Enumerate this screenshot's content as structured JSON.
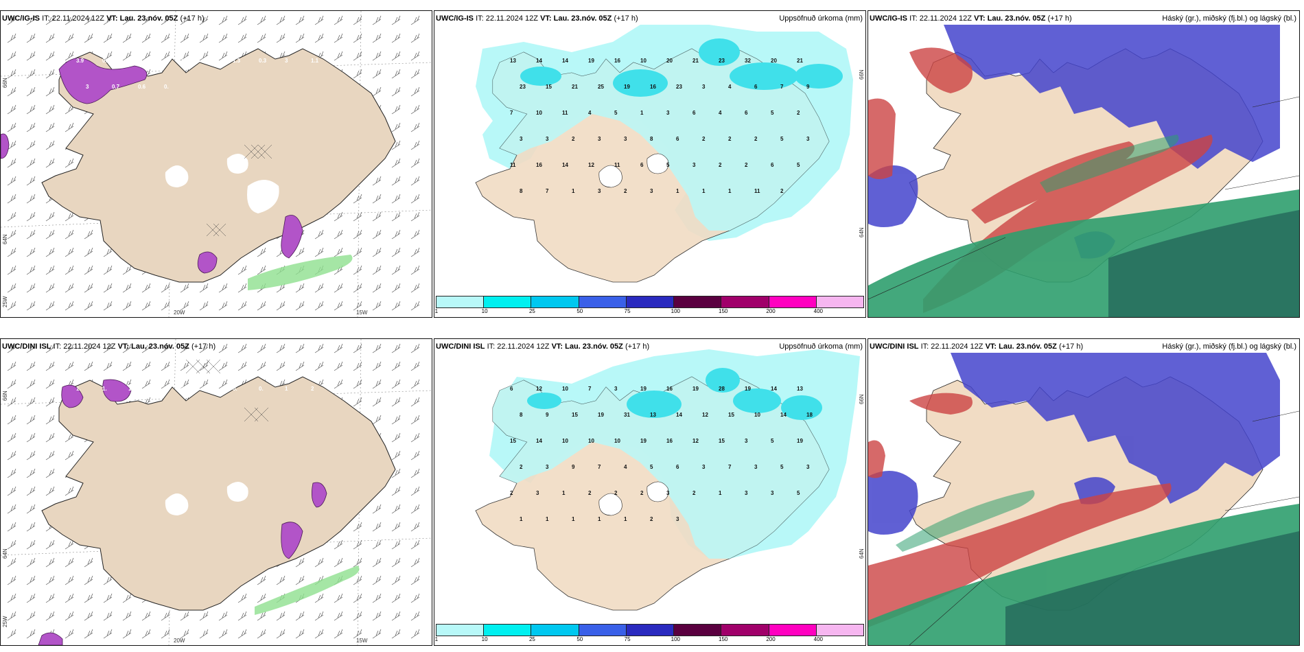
{
  "panels": [
    {
      "id": "top-left",
      "model": "UWC/IG-IS",
      "it_label": "IT:",
      "it_value": "22.11.2024 12Z",
      "vt_label": "VT:",
      "vt_value": "Lau. 23.nóv. 05Z",
      "lead": "(+17 h)",
      "right_title": "",
      "grid_labels": {
        "lat_top": "66N",
        "lat_bottom": "64N",
        "lat_corner": "25W",
        "lon_left": "20W",
        "lon_right": "15W"
      },
      "values": [
        "3.9",
        "0.4",
        "3.",
        "3.8",
        "1.",
        "0.",
        "1.3",
        "0.3",
        "3",
        "1.1",
        "1.",
        "2",
        "3",
        "0.7",
        "0.6",
        "0."
      ]
    },
    {
      "id": "top-middle",
      "model": "UWC/IG-IS",
      "it_label": "IT:",
      "it_value": "22.11.2024 12Z",
      "vt_label": "VT:",
      "vt_value": "Lau. 23.nóv. 05Z",
      "lead": "(+17 h)",
      "right_title": "Uppsöfnuð úrkoma (mm)",
      "grid_labels": {
        "lat_top": "66N",
        "lat_bottom": "64N"
      },
      "values": [
        "13",
        "14",
        "14",
        "19",
        "16",
        "10",
        "20",
        "21",
        "23",
        "32",
        "20",
        "21",
        "23",
        "15",
        "21",
        "25",
        "19",
        "16",
        "23",
        "3",
        "4",
        "6",
        "7",
        "9",
        "7",
        "10",
        "11",
        "4",
        "5",
        "1",
        "3",
        "6",
        "4",
        "6",
        "5",
        "2",
        "3",
        "3",
        "2",
        "3",
        "3",
        "8",
        "6",
        "2",
        "2",
        "2",
        "5",
        "3",
        "11",
        "16",
        "14",
        "12",
        "11",
        "6",
        "5",
        "3",
        "2",
        "2",
        "6",
        "5",
        "8",
        "7",
        "1",
        "3",
        "2",
        "3",
        "1",
        "1",
        "1",
        "11",
        "2"
      ]
    },
    {
      "id": "top-right",
      "model": "UWC/IG-IS",
      "it_label": "IT:",
      "it_value": "22.11.2024 12Z",
      "vt_label": "VT:",
      "vt_value": "Lau. 23.nóv. 05Z",
      "lead": "(+17 h)",
      "right_title": "Háský (gr.), miðský (fj.bl.) og lágský (bl.)"
    },
    {
      "id": "bottom-left",
      "model": "UWC/DINI ISL",
      "it_label": "IT:",
      "it_value": "22.11.2024 12Z",
      "vt_label": "VT:",
      "vt_value": "Lau. 23.nóv. 05Z",
      "lead": "(+17 h)",
      "right_title": "",
      "grid_labels": {
        "lat_top": "66N",
        "lat_bottom": "64N",
        "lat_corner": "25W",
        "lon_left": "20W",
        "lon_right": "15W"
      },
      "values": [
        "1.",
        "1.",
        "1.1",
        "1.",
        "0.",
        "0.",
        "0.",
        "0.",
        "1",
        "2"
      ]
    },
    {
      "id": "bottom-middle",
      "model": "UWC/DINI ISL",
      "it_label": "IT:",
      "it_value": "22.11.2024 12Z",
      "vt_label": "VT:",
      "vt_value": "Lau. 23.nóv. 05Z",
      "lead": "(+17 h)",
      "right_title": "Uppsöfnuð úrkoma (mm)",
      "grid_labels": {
        "lat_top": "66N",
        "lat_bottom": "64N"
      },
      "values": [
        "6",
        "12",
        "10",
        "7",
        "3",
        "19",
        "16",
        "19",
        "28",
        "19",
        "14",
        "13",
        "8",
        "9",
        "15",
        "19",
        "31",
        "13",
        "14",
        "12",
        "15",
        "10",
        "14",
        "18",
        "15",
        "14",
        "10",
        "10",
        "10",
        "19",
        "16",
        "12",
        "15",
        "3",
        "5",
        "19",
        "2",
        "3",
        "9",
        "7",
        "4",
        "5",
        "6",
        "3",
        "7",
        "3",
        "5",
        "3",
        "2",
        "3",
        "1",
        "2",
        "2",
        "2",
        "3",
        "2",
        "1",
        "3",
        "3",
        "5",
        "1",
        "1",
        "1",
        "1",
        "1",
        "2",
        "3"
      ]
    },
    {
      "id": "bottom-right",
      "model": "UWC/DINI ISL",
      "it_label": "IT:",
      "it_value": "22.11.2024 12Z",
      "vt_label": "VT:",
      "vt_value": "Lau. 23.nóv. 05Z",
      "lead": "(+17 h)",
      "right_title": "Háský (gr.), miðský (fj.bl.) og lágský (bl.)"
    }
  ],
  "colorbar": {
    "labels": [
      "1",
      "10",
      "25",
      "50",
      "75",
      "100",
      "150",
      "200",
      "400"
    ],
    "colors": [
      "#b8f8f8",
      "#00f0f0",
      "#00c8f0",
      "#3a60e8",
      "#2a2abf",
      "#5a0040",
      "#a0006a",
      "#ff00c0",
      "#f6b6f0"
    ]
  },
  "colors": {
    "land": "#f1dcc4",
    "land_tan": "#e8d6c0",
    "precip_light": "#b8f8f8",
    "precip_mid": "#40e0ea",
    "purple": "#b254c8",
    "green": "#8fe08f",
    "cloud_high": "#2f9e6e",
    "cloud_mid": "#cc4444",
    "cloud_low": "#4444cc"
  }
}
